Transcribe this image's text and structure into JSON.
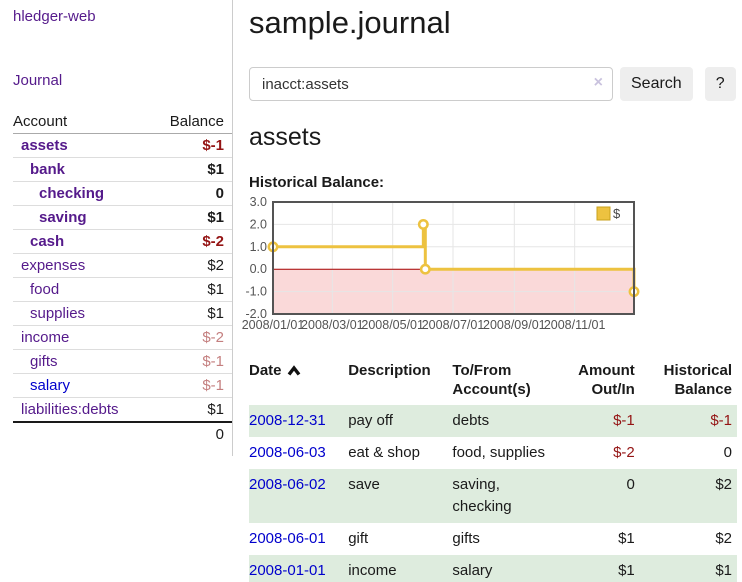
{
  "sidebar": {
    "brand": "hledger-web",
    "nav": {
      "journal": "Journal"
    },
    "accounts_table": {
      "headers": {
        "account": "Account",
        "balance": "Balance"
      },
      "rows": [
        {
          "label": "assets",
          "indent": 1,
          "bold": true,
          "balance": "$-1",
          "neg": true,
          "blue": false
        },
        {
          "label": "bank",
          "indent": 2,
          "bold": true,
          "balance": "$1",
          "neg": false,
          "blue": false
        },
        {
          "label": "checking",
          "indent": 3,
          "bold": true,
          "balance": "0",
          "neg": false,
          "blue": false
        },
        {
          "label": "saving",
          "indent": 3,
          "bold": true,
          "balance": "$1",
          "neg": false,
          "blue": false
        },
        {
          "label": "cash",
          "indent": 2,
          "bold": true,
          "balance": "$-2",
          "neg": true,
          "blue": false
        },
        {
          "label": "expenses",
          "indent": 1,
          "bold": false,
          "balance": "$2",
          "neg": false,
          "blue": false
        },
        {
          "label": "food",
          "indent": 2,
          "bold": false,
          "balance": "$1",
          "neg": false,
          "blue": false
        },
        {
          "label": "supplies",
          "indent": 2,
          "bold": false,
          "balance": "$1",
          "neg": false,
          "blue": false
        },
        {
          "label": "income",
          "indent": 1,
          "bold": false,
          "balance": "$-2",
          "neg": true,
          "blue": false
        },
        {
          "label": "gifts",
          "indent": 2,
          "bold": false,
          "balance": "$-1",
          "neg": true,
          "blue": false
        },
        {
          "label": "salary",
          "indent": 2,
          "bold": false,
          "balance": "$-1",
          "neg": true,
          "blue": true
        },
        {
          "label": "liabilities:debts",
          "indent": 1,
          "bold": false,
          "balance": "$1",
          "neg": false,
          "blue": false
        }
      ],
      "total": "0"
    }
  },
  "main": {
    "title": "sample.journal",
    "search": {
      "value": "inacct:assets",
      "clear_icon": "×",
      "button": "Search",
      "help_button": "?"
    },
    "account_heading": "assets",
    "chart_heading": "Historical Balance:",
    "register": {
      "headers": {
        "date": "Date",
        "description": "Description",
        "accounts": "To/From Account(s)",
        "amount": "Amount Out/In",
        "balance": "Historical Balance"
      },
      "rows": [
        {
          "date": "2008-12-31",
          "description": "pay off",
          "accounts": "debts",
          "amount": "$-1",
          "balance": "$-1"
        },
        {
          "date": "2008-06-03",
          "description": "eat & shop",
          "accounts": "food, supplies",
          "amount": "$-2",
          "balance": "0"
        },
        {
          "date": "2008-06-02",
          "description": "save",
          "accounts": "saving, checking",
          "amount": "0",
          "balance": "$2"
        },
        {
          "date": "2008-06-01",
          "description": "gift",
          "accounts": "gifts",
          "amount": "$1",
          "balance": "$2"
        },
        {
          "date": "2008-01-01",
          "description": "income",
          "accounts": "salary",
          "amount": "$1",
          "balance": "$1"
        }
      ]
    }
  },
  "chart_data": {
    "type": "line",
    "step": true,
    "title": "Historical Balance:",
    "series": [
      {
        "name": "$",
        "color": "#edc240",
        "points": [
          [
            "2008-01-01",
            1
          ],
          [
            "2008-06-01",
            2
          ],
          [
            "2008-06-03",
            0
          ],
          [
            "2008-12-31",
            -1
          ]
        ]
      }
    ],
    "x_ticks": [
      [
        "2008-01-01",
        "2008/01/01"
      ],
      [
        "2008-03-01",
        "2008/03/01"
      ],
      [
        "2008-05-01",
        "2008/05/01"
      ],
      [
        "2008-07-01",
        "2008/07/01"
      ],
      [
        "2008-09-01",
        "2008/09/01"
      ],
      [
        "2008-11-01",
        "2008/11/01"
      ]
    ],
    "y_ticks": [
      "3.0",
      "2.0",
      "1.0",
      "0.0",
      "-1.0",
      "-2.0"
    ],
    "ylim": [
      -2,
      3
    ],
    "xlim": [
      "2008-01-01",
      "2008-12-31"
    ],
    "legend_position": "top-right",
    "grid": true,
    "grid_color": "#e6e6e6",
    "border_color": "#545454",
    "text_color": "#545454",
    "negative_region_fill": "#fad9d9",
    "zero_line_color": "#a40000",
    "marker_fill": "#ffffff"
  },
  "colors": {
    "link_purple": "#551a8b",
    "link_blue": "#0000cc",
    "negative_strong": "#941414",
    "negative_soft": "#c47f7f",
    "row_stripe_green": "#deecde",
    "button_bg": "#eeeeee"
  }
}
